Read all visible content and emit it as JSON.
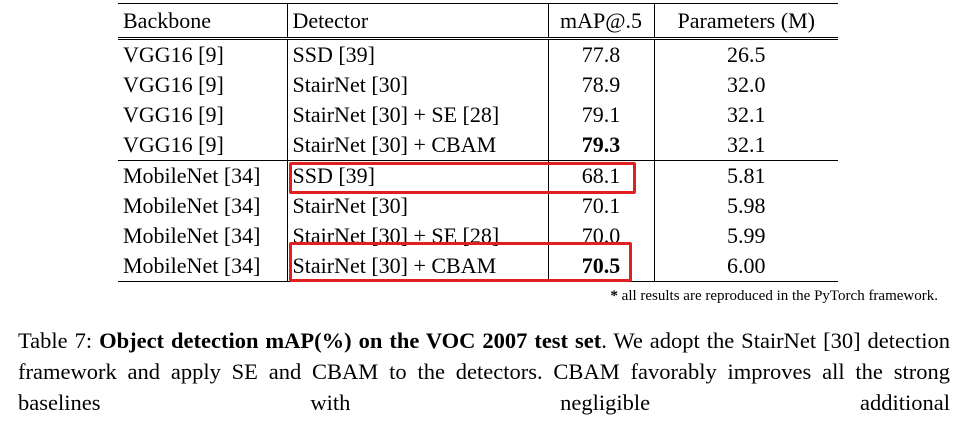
{
  "table": {
    "header": [
      "Backbone",
      "Detector",
      "mAP@.5",
      "Parameters (M)"
    ],
    "rows": [
      [
        "VGG16 [9]",
        "SSD [39]",
        "77.8",
        "26.5"
      ],
      [
        "VGG16 [9]",
        "StairNet [30]",
        "78.9",
        "32.0"
      ],
      [
        "VGG16 [9]",
        "StairNet [30] + SE [28]",
        "79.1",
        "32.1"
      ],
      [
        "VGG16 [9]",
        "StairNet [30] + CBAM",
        "79.3",
        "32.1"
      ],
      [
        "MobileNet [34]",
        "SSD [39]",
        "68.1",
        "5.81"
      ],
      [
        "MobileNet [34]",
        "StairNet [30]",
        "70.1",
        "5.98"
      ],
      [
        "MobileNet [34]",
        "StairNet [30] + SE [28]",
        "70.0",
        "5.99"
      ],
      [
        "MobileNet [34]",
        "StairNet [30] + CBAM",
        "70.5",
        "6.00"
      ]
    ]
  },
  "footnote": {
    "marker": "*",
    "text": "all results are reproduced in the PyTorch framework."
  },
  "caption": {
    "label": "Table 7:",
    "bold": "Object detection mAP(%) on the VOC 2007 test set",
    "text": ". We adopt the StairNet [30] detection framework and apply SE and CBAM to the detectors. CBAM favorably improves all the strong baselines with negligible additional"
  }
}
